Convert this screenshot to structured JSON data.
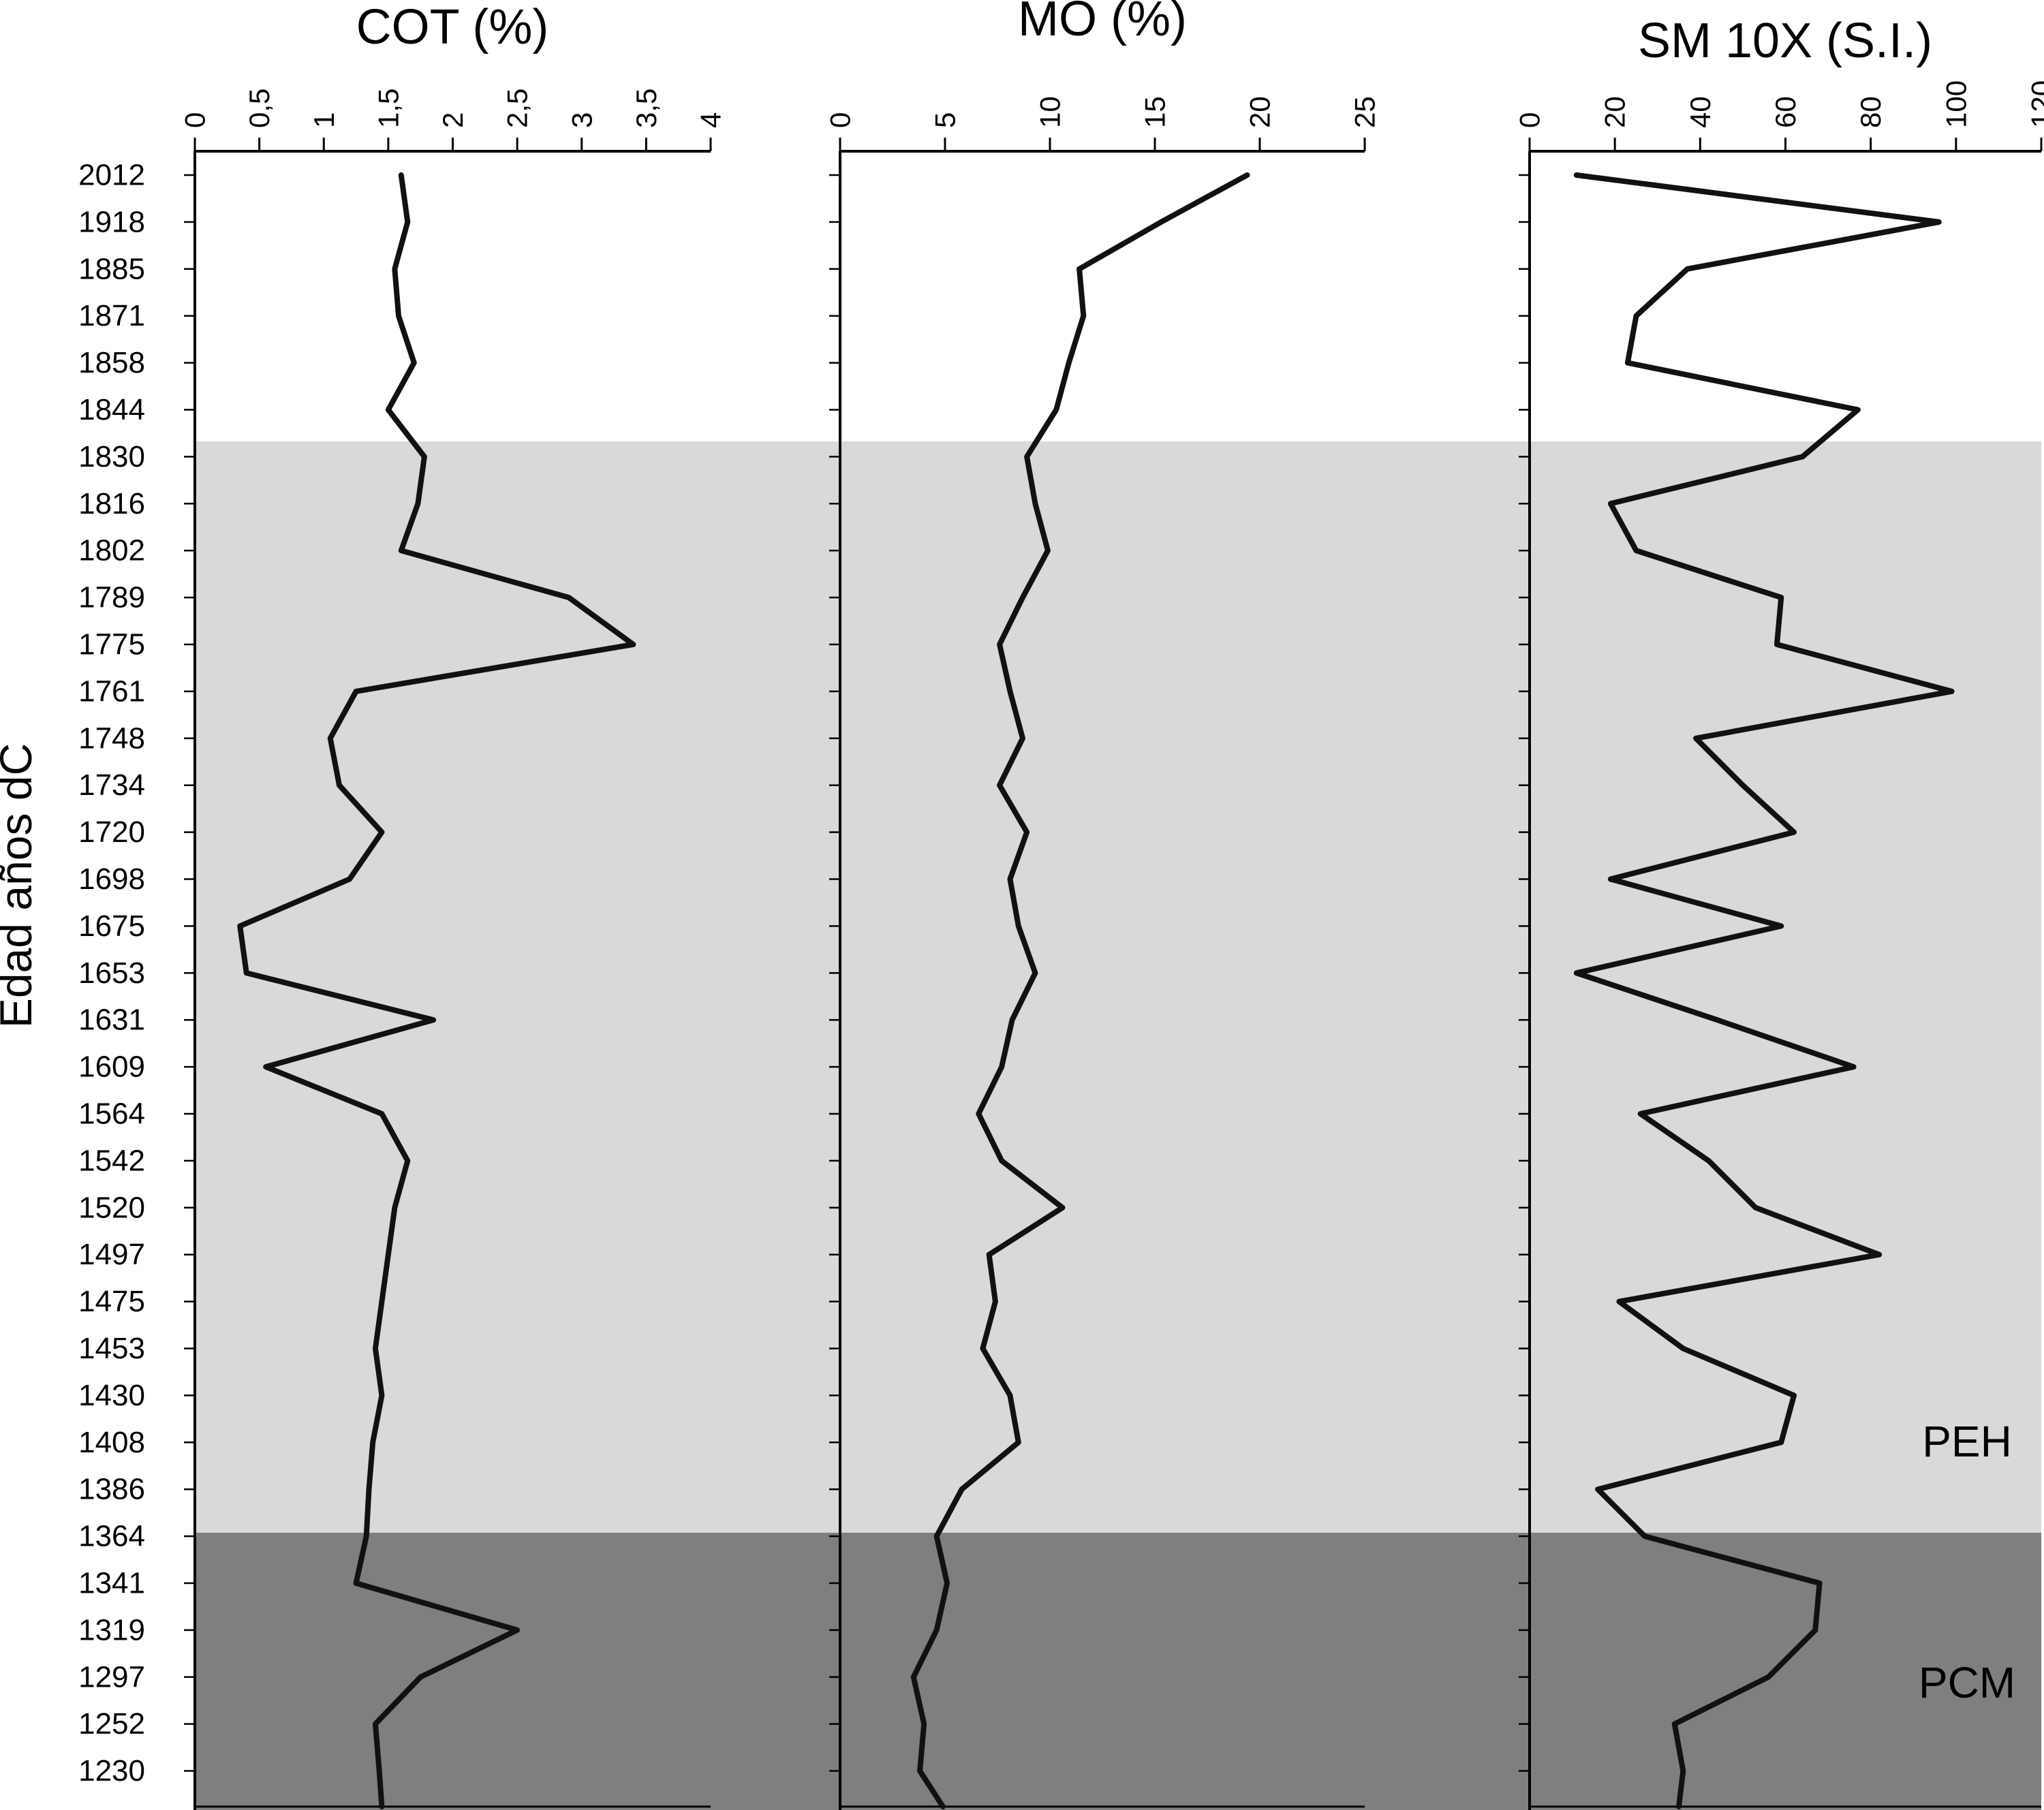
{
  "figure": {
    "y_axis_title": "Edad años dC",
    "annotations": {
      "peh": "PEH",
      "pcm": "PCM"
    },
    "band_colors": {
      "recent": "#ffffff",
      "peh": "#d9d9d9",
      "pcm": "#7f7f7f"
    },
    "line_color": "#111111",
    "bands": [
      {
        "label": "",
        "approx_from_year": 2012,
        "approx_to_year": 1836,
        "color": "#ffffff"
      },
      {
        "label": "PEH",
        "approx_from_year": 1836,
        "approx_to_year": 1375,
        "color": "#d9d9d9"
      },
      {
        "label": "PCM",
        "approx_from_year": 1375,
        "approx_to_year": 1230,
        "color": "#7f7f7f"
      }
    ],
    "age_labels": [
      "2012",
      "1918",
      "1885",
      "1871",
      "1858",
      "1844",
      "1830",
      "1816",
      "1802",
      "1789",
      "1775",
      "1761",
      "1748",
      "1734",
      "1720",
      "1698",
      "1675",
      "1653",
      "1631",
      "1609",
      "1564",
      "1542",
      "1520",
      "1497",
      "1475",
      "1453",
      "1430",
      "1408",
      "1386",
      "1364",
      "1341",
      "1319",
      "1297",
      "1252",
      "1230"
    ]
  },
  "chart_data": [
    {
      "id": "cot",
      "type": "line",
      "title": "COT (%)",
      "xlabel": "COT (%)",
      "ylabel": "Edad años dC",
      "xlim": [
        0,
        4
      ],
      "x_tick_labels": [
        "0",
        "0,5",
        "1",
        "1,5",
        "2",
        "2,5",
        "3",
        "3,5",
        "4"
      ],
      "x_tick_values": [
        0,
        0.5,
        1,
        1.5,
        2,
        2.5,
        3,
        3.5,
        4
      ],
      "categories": [
        2012,
        1918,
        1885,
        1871,
        1858,
        1844,
        1830,
        1816,
        1802,
        1789,
        1775,
        1761,
        1748,
        1734,
        1720,
        1698,
        1675,
        1653,
        1631,
        1609,
        1564,
        1542,
        1520,
        1497,
        1475,
        1453,
        1430,
        1408,
        1386,
        1364,
        1341,
        1319,
        1297,
        1252,
        1230
      ],
      "values": [
        1.6,
        1.65,
        1.55,
        1.58,
        1.7,
        1.5,
        1.78,
        1.73,
        1.6,
        2.9,
        3.4,
        1.25,
        1.05,
        1.12,
        1.45,
        1.2,
        0.35,
        0.4,
        1.85,
        0.55,
        1.45,
        1.65,
        1.55,
        1.5,
        1.45,
        1.4,
        1.45,
        1.38,
        1.35,
        1.33,
        1.25,
        2.5,
        1.75,
        1.4,
        1.43
      ],
      "bottom_value": 1.45,
      "grid": false,
      "legend": false
    },
    {
      "id": "mo",
      "type": "line",
      "title": "MO (%)",
      "xlabel": "MO (%)",
      "ylabel": "Edad años dC",
      "xlim": [
        0,
        25
      ],
      "x_tick_labels": [
        "0",
        "5",
        "10",
        "15",
        "20",
        "25"
      ],
      "x_tick_values": [
        0,
        5,
        10,
        15,
        20,
        25
      ],
      "categories": [
        2012,
        1918,
        1885,
        1871,
        1858,
        1844,
        1830,
        1816,
        1802,
        1789,
        1775,
        1761,
        1748,
        1734,
        1720,
        1698,
        1675,
        1653,
        1631,
        1609,
        1564,
        1542,
        1520,
        1497,
        1475,
        1453,
        1430,
        1408,
        1386,
        1364,
        1341,
        1319,
        1297,
        1252,
        1230
      ],
      "values": [
        19.4,
        15.3,
        11.4,
        11.6,
        10.9,
        10.3,
        8.9,
        9.3,
        9.9,
        8.7,
        7.6,
        8.1,
        8.7,
        7.6,
        8.9,
        8.1,
        8.5,
        9.3,
        8.2,
        7.7,
        6.6,
        7.7,
        10.6,
        7.1,
        7.4,
        6.8,
        8.1,
        8.5,
        5.8,
        4.6,
        5.1,
        4.6,
        3.5,
        4.0,
        3.8
      ],
      "bottom_value": 4.9,
      "grid": false,
      "legend": false
    },
    {
      "id": "sm",
      "type": "line",
      "title": "SM 10X (S.I.)",
      "xlabel": "SM 10X (S.I.)",
      "ylabel": "Edad años dC",
      "xlim": [
        0,
        120
      ],
      "x_tick_labels": [
        "0",
        "20",
        "40",
        "60",
        "80",
        "100",
        "120"
      ],
      "x_tick_values": [
        0,
        20,
        40,
        60,
        80,
        100,
        120
      ],
      "categories": [
        2012,
        1918,
        1885,
        1871,
        1858,
        1844,
        1830,
        1816,
        1802,
        1789,
        1775,
        1761,
        1748,
        1734,
        1720,
        1698,
        1675,
        1653,
        1631,
        1609,
        1564,
        1542,
        1520,
        1497,
        1475,
        1453,
        1430,
        1408,
        1386,
        1364,
        1341,
        1319,
        1297,
        1252,
        1230
      ],
      "values": [
        11,
        96,
        37,
        25,
        23,
        77,
        64,
        19,
        25,
        59,
        58,
        99,
        39,
        50,
        62,
        19,
        59,
        11,
        44,
        76,
        26,
        42,
        53,
        82,
        21,
        36,
        62,
        59,
        16,
        27,
        68,
        67,
        56,
        34,
        36
      ],
      "bottom_value": 35,
      "grid": false,
      "legend": false
    }
  ]
}
